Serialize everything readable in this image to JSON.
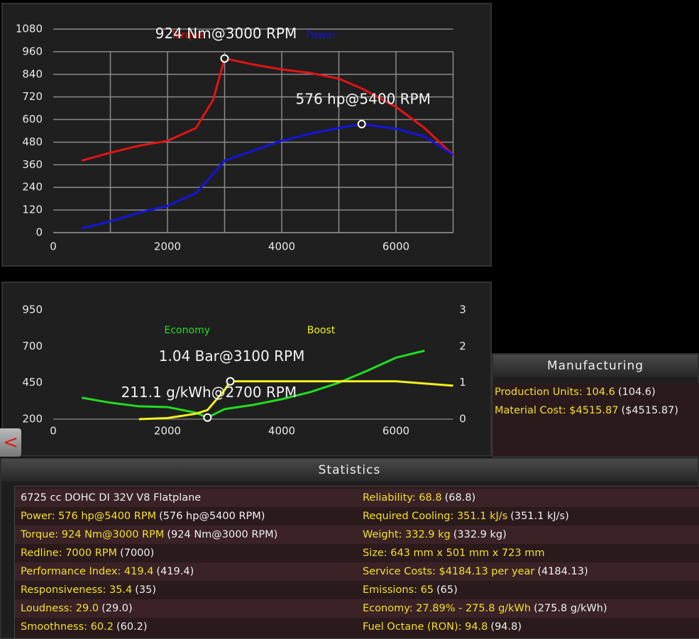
{
  "chart_data": [
    {
      "type": "line",
      "x": [
        500,
        1000,
        1500,
        2000,
        2500,
        2800,
        3000,
        3500,
        4000,
        4500,
        5000,
        5400,
        6000,
        6500,
        7000
      ],
      "series": [
        {
          "name": "Torque",
          "color": "#e31414",
          "values": [
            382,
            424,
            461,
            487,
            555,
            705,
            924,
            892,
            866,
            847,
            817,
            765,
            667,
            555,
            412
          ]
        },
        {
          "name": "Power",
          "color": "#1414e0",
          "values": [
            22,
            60,
            105,
            142,
            210,
            311,
            382,
            435,
            487,
            525,
            555,
            576,
            551,
            510,
            412
          ]
        }
      ],
      "xlim": [
        0,
        7000
      ],
      "xticks": [
        0,
        2000,
        4000,
        6000
      ],
      "x_grid": [
        1000,
        2000,
        3000,
        4000,
        5000,
        6000,
        7000
      ],
      "ylim": [
        0,
        1080
      ],
      "yticks": [
        0,
        120,
        240,
        360,
        480,
        600,
        720,
        840,
        960,
        1080
      ],
      "grid": true,
      "annotations": [
        {
          "text": "924 Nm@3000 RPM",
          "x": 3000,
          "y": 924
        },
        {
          "text": "576 hp@5400 RPM",
          "x": 5400,
          "y": 576
        }
      ]
    },
    {
      "type": "line",
      "x": [
        500,
        1000,
        1500,
        2000,
        2500,
        2700,
        3000,
        3100,
        3500,
        4000,
        4500,
        5000,
        5500,
        6000,
        6500,
        7000
      ],
      "series": [
        {
          "name": "Economy",
          "color": "#22dd22",
          "values": [
            347,
            313,
            288,
            283,
            244,
            211.1,
            269,
            275,
            298,
            337,
            386,
            450,
            533,
            622,
            670,
            null
          ]
        },
        {
          "name": "Boost",
          "color": "#f2f21e",
          "axis": "y2",
          "values": [
            null,
            null,
            0,
            0.03,
            0.15,
            0.25,
            0.8,
            1.04,
            1.04,
            1.04,
            1.04,
            1.04,
            1.04,
            1.04,
            0.98,
            0.92
          ]
        }
      ],
      "xlim": [
        0,
        7000
      ],
      "xticks": [
        0,
        2000,
        4000,
        6000
      ],
      "ylim": [
        200,
        950
      ],
      "yticks": [
        200,
        450,
        700,
        950
      ],
      "y2lim": [
        0,
        3
      ],
      "y2ticks": [
        0,
        1,
        2,
        3
      ],
      "grid": false,
      "annotations": [
        {
          "text": "1.04 Bar@3100 RPM",
          "x": 3100,
          "y": 1.04,
          "axis": "y2"
        },
        {
          "text": "211.1 g/kWh@2700 RPM",
          "x": 2700,
          "y": 211.1
        }
      ]
    }
  ],
  "back_button": "<",
  "manufacturing": {
    "title": "Manufacturing",
    "rows": [
      {
        "text": "Production Units: 104.6",
        "ref": "(104.6)"
      },
      {
        "text": "Material Cost: $4515.87",
        "ref": "($4515.87)"
      }
    ]
  },
  "statistics": {
    "title": "Statistics",
    "engine": "6725 cc DOHC DI 32V V8 Flatplane",
    "left": [
      {
        "text": "Power: 576 hp@5400 RPM",
        "ref": "(576 hp@5400 RPM)"
      },
      {
        "text": "Torque: 924 Nm@3000 RPM",
        "ref": "(924 Nm@3000 RPM)"
      },
      {
        "text": "Redline: 7000 RPM",
        "ref": "(7000)"
      },
      {
        "text": "Performance Index: 419.4",
        "ref": "(419.4)"
      },
      {
        "text": "Responsiveness: 35.4",
        "ref": "(35)"
      },
      {
        "text": "Loudness: 29.0",
        "ref": "(29.0)"
      },
      {
        "text": "Smoothness: 60.2",
        "ref": "(60.2)"
      }
    ],
    "right": [
      {
        "text": "Reliability: 68.8",
        "ref": "(68.8)"
      },
      {
        "text": "Required Cooling: 351.1 kJ/s",
        "ref": "(351.1 kJ/s)"
      },
      {
        "text": "Weight: 332.9 kg",
        "ref": "(332.9 kg)"
      },
      {
        "text": "Size: 643 mm x 501 mm x 723 mm"
      },
      {
        "text": "Service Costs: $4184.13 per year",
        "ref": "(4184.13)"
      },
      {
        "text": "Emissions: 65",
        "ref": "(65)"
      },
      {
        "text": "Economy: 27.89% - 275.8 g/kWh",
        "ref": "(275.8 g/kWh)"
      },
      {
        "text": "Fuel Octane (RON): 94.8",
        "ref": "(94.8)"
      }
    ]
  }
}
